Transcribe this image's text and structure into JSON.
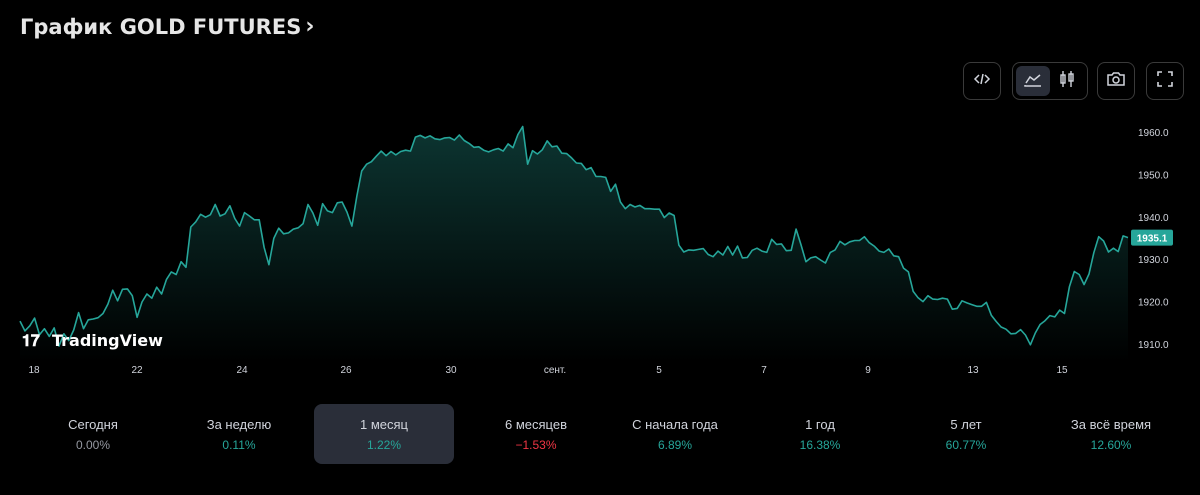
{
  "header": {
    "title": "График GOLD FUTURES",
    "chevron": "›"
  },
  "toolbar": {
    "buttons": [
      {
        "name": "embed-code-icon"
      },
      {
        "name": "area-chart-icon",
        "active": true
      },
      {
        "name": "candlestick-icon"
      },
      {
        "name": "camera-icon"
      },
      {
        "name": "fullscreen-icon"
      }
    ]
  },
  "watermark": {
    "text": "TradingView"
  },
  "chart_data": {
    "type": "area",
    "title": "",
    "xlabel": "",
    "ylabel": "",
    "x_ticks": [
      "18",
      "22",
      "24",
      "26",
      "30",
      "сент.",
      "5",
      "7",
      "9",
      "13",
      "15"
    ],
    "y_ticks": [
      "1960.0",
      "1950.0",
      "1940.0",
      "1930.0",
      "1920.0",
      "1910.0"
    ],
    "ylim": [
      1906,
      1963
    ],
    "last_value": "1935.1",
    "series": [
      {
        "values": [
          1915.4,
          1913.1,
          1914.3,
          1916.1,
          1912.2,
          1913.6,
          1911.8,
          1913.8,
          1909.5,
          1912.4,
          1910.8,
          1913.3,
          1917.4,
          1913.6,
          1915.7,
          1915.9,
          1916.2,
          1917.2,
          1919.4,
          1922.7,
          1920.2,
          1922.9,
          1923.0,
          1921.4,
          1916.3,
          1919.9,
          1921.8,
          1920.8,
          1923.4,
          1921.8,
          1925.2,
          1927.0,
          1926.4,
          1929.4,
          1928.1,
          1937.6,
          1938.8,
          1940.6,
          1939.9,
          1940.5,
          1942.9,
          1940.2,
          1940.7,
          1942.6,
          1939.6,
          1937.8,
          1941.0,
          1940.2,
          1939.3,
          1939.3,
          1932.8,
          1928.7,
          1934.9,
          1937.3,
          1936.0,
          1936.2,
          1937.1,
          1937.4,
          1938.4,
          1942.9,
          1940.9,
          1938.0,
          1943.1,
          1941.4,
          1941.0,
          1943.3,
          1943.5,
          1941.1,
          1937.8,
          1944.8,
          1950.8,
          1952.4,
          1953.0,
          1954.3,
          1955.5,
          1954.4,
          1955.4,
          1954.6,
          1955.4,
          1955.7,
          1955.5,
          1958.8,
          1959.2,
          1958.6,
          1959.1,
          1958.4,
          1958.2,
          1958.6,
          1958.7,
          1958.1,
          1959.3,
          1958.0,
          1957.3,
          1956.4,
          1956.5,
          1955.7,
          1955.3,
          1955.8,
          1956.1,
          1955.5,
          1957.2,
          1956.3,
          1959.4,
          1961.3,
          1952.4,
          1955.6,
          1954.8,
          1955.8,
          1957.9,
          1956.5,
          1956.7,
          1955.0,
          1954.9,
          1953.9,
          1952.7,
          1952.6,
          1951.1,
          1951.6,
          1949.5,
          1949.5,
          1949.3,
          1946.0,
          1947.7,
          1943.5,
          1941.9,
          1942.9,
          1942.3,
          1942.7,
          1941.9,
          1941.9,
          1941.8,
          1941.8,
          1939.8,
          1940.9,
          1940.3,
          1933.3,
          1931.7,
          1932.2,
          1932.1,
          1932.3,
          1932.5,
          1931.1,
          1930.6,
          1931.9,
          1931.0,
          1933.0,
          1931.0,
          1933.1,
          1930.3,
          1930.4,
          1932.1,
          1932.6,
          1931.9,
          1931.6,
          1934.7,
          1933.5,
          1933.6,
          1932.0,
          1932.1,
          1937.1,
          1933.4,
          1929.4,
          1930.3,
          1930.6,
          1929.8,
          1929.1,
          1931.6,
          1932.2,
          1934.2,
          1933.4,
          1934.1,
          1934.4,
          1934.4,
          1935.3,
          1933.9,
          1933.1,
          1931.9,
          1931.6,
          1932.4,
          1930.8,
          1930.6,
          1927.9,
          1927.0,
          1922.4,
          1920.9,
          1920.0,
          1921.4,
          1920.6,
          1920.5,
          1920.8,
          1920.6,
          1918.2,
          1918.4,
          1920.2,
          1919.7,
          1919.3,
          1918.9,
          1918.9,
          1919.8,
          1916.8,
          1915.3,
          1914.0,
          1913.5,
          1912.4,
          1912.5,
          1913.4,
          1912.1,
          1909.8,
          1912.6,
          1914.6,
          1915.5,
          1916.7,
          1916.4,
          1918.0,
          1917.2,
          1923.5,
          1927.1,
          1926.4,
          1924.0,
          1926.5,
          1931.5,
          1935.3,
          1934.3,
          1931.7,
          1932.6,
          1931.8,
          1935.5,
          1935.1
        ]
      }
    ]
  },
  "periods": [
    {
      "label": "Сегодня",
      "value": "0.00%",
      "sign": "zero"
    },
    {
      "label": "За неделю",
      "value": "0.11%",
      "sign": "pos"
    },
    {
      "label": "1 месяц",
      "value": "1.22%",
      "sign": "pos",
      "active": true
    },
    {
      "label": "6 месяцев",
      "value": "−1.53%",
      "sign": "neg"
    },
    {
      "label": "С начала года",
      "value": "6.89%",
      "sign": "pos"
    },
    {
      "label": "1 год",
      "value": "16.38%",
      "sign": "pos"
    },
    {
      "label": "5 лет",
      "value": "60.77%",
      "sign": "pos"
    },
    {
      "label": "За всё время",
      "value": "12.60%",
      "sign": "pos"
    }
  ],
  "colors": {
    "line": "#26a69a",
    "badge": "#26a69a",
    "axis_text": "#d1d4dc"
  }
}
